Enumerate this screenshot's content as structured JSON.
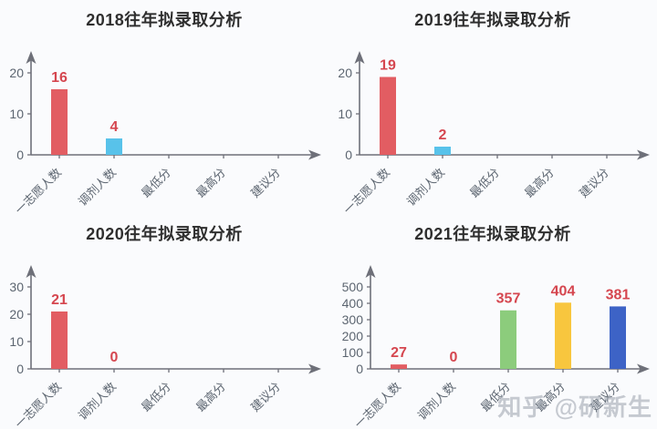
{
  "page": {
    "background": "#fafbfd"
  },
  "watermark": {
    "text": "知乎 @研新生"
  },
  "colors": {
    "title": "#2f2f2f",
    "axis": "#6E7079",
    "tick_text": "#5c6570",
    "value_label": "#d5464f",
    "palette": [
      "#e25d62",
      "#58c2ea",
      "#8ccc7c",
      "#f8c63e",
      "#3d63c6"
    ]
  },
  "chart_data": [
    {
      "type": "bar",
      "title": "2018往年拟录取分析",
      "categories": [
        "一志愿人数",
        "调剂人数",
        "最低分",
        "最高分",
        "建议分"
      ],
      "values": [
        16,
        4,
        null,
        null,
        null
      ],
      "y_ticks": [
        0,
        10,
        20
      ],
      "ylim": [
        0,
        20
      ],
      "xlabel": "",
      "ylabel": "",
      "grid": false,
      "legend": false
    },
    {
      "type": "bar",
      "title": "2019往年拟录取分析",
      "categories": [
        "一志愿人数",
        "调剂人数",
        "最低分",
        "最高分",
        "建议分"
      ],
      "values": [
        19,
        2,
        null,
        null,
        null
      ],
      "y_ticks": [
        0,
        10,
        20
      ],
      "ylim": [
        0,
        20
      ],
      "xlabel": "",
      "ylabel": "",
      "grid": false,
      "legend": false
    },
    {
      "type": "bar",
      "title": "2020往年拟录取分析",
      "categories": [
        "一志愿人数",
        "调剂人数",
        "最低分",
        "最高分",
        "建议分"
      ],
      "values": [
        21,
        0,
        null,
        null,
        null
      ],
      "y_ticks": [
        0,
        10,
        20,
        30
      ],
      "ylim": [
        0,
        30
      ],
      "xlabel": "",
      "ylabel": "",
      "grid": false,
      "legend": false
    },
    {
      "type": "bar",
      "title": "2021往年拟录取分析",
      "categories": [
        "一志愿人数",
        "调剂人数",
        "最低分",
        "最高分",
        "建议分"
      ],
      "values": [
        27,
        0,
        357,
        404,
        381
      ],
      "y_ticks": [
        0,
        100,
        200,
        300,
        400,
        500
      ],
      "ylim": [
        0,
        500
      ],
      "xlabel": "",
      "ylabel": "",
      "grid": false,
      "legend": false
    }
  ]
}
